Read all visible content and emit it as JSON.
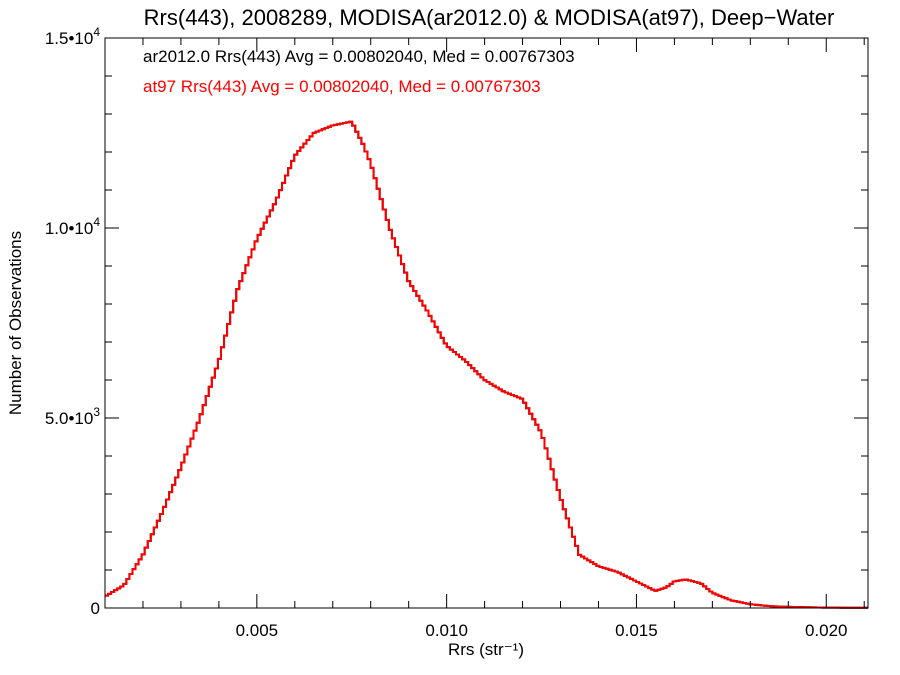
{
  "chart_data": {
    "type": "line",
    "title": "Rrs(443), 2008289, MODISA(ar2012.0) & MODISA(at97), Deep−Water",
    "xlabel": "Rrs (str⁻¹)",
    "ylabel": "Number of Observations",
    "xlim": [
      0.001,
      0.0211
    ],
    "ylim": [
      0,
      15000
    ],
    "grid": false,
    "x_ticks": [
      {
        "value": 0.005,
        "label": "0.005"
      },
      {
        "value": 0.01,
        "label": "0.010"
      },
      {
        "value": 0.015,
        "label": "0.015"
      },
      {
        "value": 0.02,
        "label": "0.020"
      }
    ],
    "y_ticks": [
      {
        "value": 0,
        "mantissa": "0",
        "exp": ""
      },
      {
        "value": 5000,
        "mantissa": "5.0•10",
        "exp": "3"
      },
      {
        "value": 10000,
        "mantissa": "1.0•10",
        "exp": "4"
      },
      {
        "value": 15000,
        "mantissa": "1.5•10",
        "exp": "4"
      }
    ],
    "annotations": [
      {
        "text": "ar2012.0 Rrs(443) Avg = 0.00802040, Med = 0.00767303",
        "color": "#000000"
      },
      {
        "text": "at97 Rrs(443) Avg = 0.00802040, Med = 0.00767303",
        "color": "#ff0000"
      }
    ],
    "series": [
      {
        "color": "#000000",
        "x": [
          0.001,
          0.0015,
          0.002,
          0.0025,
          0.003,
          0.0035,
          0.004,
          0.0045,
          0.005,
          0.0055,
          0.006,
          0.0065,
          0.007,
          0.0075,
          0.0078,
          0.008,
          0.0085,
          0.009,
          0.0095,
          0.01,
          0.0105,
          0.011,
          0.0115,
          0.012,
          0.0125,
          0.013,
          0.0135,
          0.014,
          0.0145,
          0.015,
          0.0155,
          0.0158,
          0.016,
          0.0163,
          0.0167,
          0.017,
          0.0175,
          0.018,
          0.0185,
          0.019,
          0.02,
          0.0211
        ],
        "y": [
          300,
          600,
          1400,
          2500,
          3700,
          5000,
          6500,
          8400,
          9700,
          10700,
          11900,
          12500,
          12700,
          12800,
          12200,
          11700,
          10000,
          8600,
          7800,
          6900,
          6500,
          6000,
          5700,
          5500,
          4600,
          2900,
          1400,
          1100,
          950,
          700,
          450,
          550,
          700,
          750,
          650,
          400,
          200,
          100,
          50,
          30,
          10,
          5
        ]
      },
      {
        "color": "#ff0000",
        "x": [
          0.001,
          0.0015,
          0.002,
          0.0025,
          0.003,
          0.0035,
          0.004,
          0.0045,
          0.005,
          0.0055,
          0.006,
          0.0065,
          0.007,
          0.0075,
          0.0078,
          0.008,
          0.0085,
          0.009,
          0.0095,
          0.01,
          0.0105,
          0.011,
          0.0115,
          0.012,
          0.0125,
          0.013,
          0.0135,
          0.014,
          0.0145,
          0.015,
          0.0155,
          0.0158,
          0.016,
          0.0163,
          0.0167,
          0.017,
          0.0175,
          0.018,
          0.0185,
          0.019,
          0.02,
          0.0211
        ],
        "y": [
          300,
          600,
          1400,
          2500,
          3700,
          5000,
          6500,
          8400,
          9700,
          10700,
          11900,
          12500,
          12700,
          12800,
          12200,
          11700,
          10000,
          8600,
          7800,
          6900,
          6500,
          6000,
          5700,
          5500,
          4600,
          2900,
          1400,
          1100,
          950,
          700,
          450,
          550,
          700,
          750,
          650,
          400,
          200,
          100,
          50,
          30,
          10,
          5
        ]
      }
    ]
  }
}
